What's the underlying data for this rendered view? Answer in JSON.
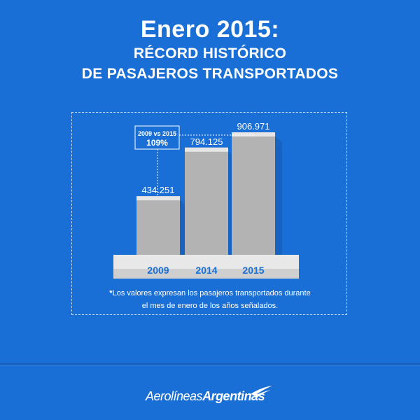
{
  "title": "Enero 2015:",
  "subtitle_line1": "RÉCORD HISTÓRICO",
  "subtitle_line2": "DE PASAJEROS TRANSPORTADOS",
  "chart_data": {
    "type": "bar",
    "categories": [
      "2009",
      "2014",
      "2015"
    ],
    "values": [
      434251,
      794125,
      906971
    ],
    "value_labels": [
      "434.251",
      "794.125",
      "906.971"
    ],
    "annotation": {
      "label": "2009 vs 2015",
      "value": "109%"
    }
  },
  "footnote": {
    "star": "*",
    "line1": "Los valores expresan los pasajeros transportados durante",
    "line2": "el mes de enero de los años señalados."
  },
  "logo": {
    "part1": "Aerolíneas",
    "part2": "Argentinas"
  },
  "colors": {
    "background": "#1a6fd6",
    "bar_front": "#b3b3b3",
    "bar_top": "#e6e6e6",
    "category_text": "#1a6fd6",
    "annotation_box": "#1a6fd6"
  }
}
